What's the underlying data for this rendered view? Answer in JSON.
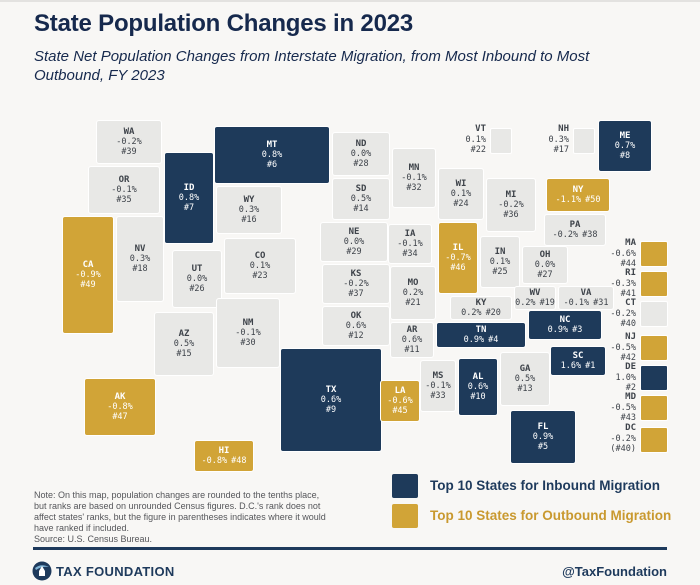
{
  "title": "State Population Changes in 2023",
  "subtitle": "State Net Population Changes from Interstate Migration, from Most Inbound to Most Outbound, FY 2023",
  "colors": {
    "inbound": "#1e3a5a",
    "outbound": "#d1a437",
    "neutral": "#e8e8e6",
    "navy": "#16294d",
    "footer_navy": "#1e3a5c",
    "outbound_text": "#c9992f",
    "background": "#f8f7f5",
    "note_gray": "#55565a",
    "label_dark": "#3e434a"
  },
  "legend": [
    {
      "label": "Top 10 States for Inbound Migration",
      "group": "inbound"
    },
    {
      "label": "Top 10 States for Outbound Migration",
      "group": "outbound"
    }
  ],
  "note": "Note: On this map, population changes are rounded to the tenths place,\nbut ranks are based on unrounded Census figures. D.C.'s rank does not\naffect states' ranks, but the figure in parentheses indicates where it would\nhave ranked if included.",
  "source": "Source: U.S. Census Bureau.",
  "footer": {
    "brand": "TAX FOUNDATION",
    "handle": "@TaxFoundation",
    "logo": "taxfoundation-logo"
  },
  "states": [
    {
      "abbr": "SC",
      "change": "1.6%",
      "rank": "#1",
      "group": "inbound"
    },
    {
      "abbr": "DE",
      "change": "1.0%",
      "rank": "#2",
      "group": "inbound"
    },
    {
      "abbr": "NC",
      "change": "0.9%",
      "rank": "#3",
      "group": "inbound"
    },
    {
      "abbr": "TN",
      "change": "0.9%",
      "rank": "#4",
      "group": "inbound"
    },
    {
      "abbr": "FL",
      "change": "0.9%",
      "rank": "#5",
      "group": "inbound"
    },
    {
      "abbr": "MT",
      "change": "0.8%",
      "rank": "#6",
      "group": "inbound"
    },
    {
      "abbr": "ID",
      "change": "0.8%",
      "rank": "#7",
      "group": "inbound"
    },
    {
      "abbr": "ME",
      "change": "0.7%",
      "rank": "#8",
      "group": "inbound"
    },
    {
      "abbr": "TX",
      "change": "0.6%",
      "rank": "#9",
      "group": "inbound"
    },
    {
      "abbr": "AL",
      "change": "0.6%",
      "rank": "#10",
      "group": "inbound"
    },
    {
      "abbr": "AR",
      "change": "0.6%",
      "rank": "#11",
      "group": "neutral"
    },
    {
      "abbr": "OK",
      "change": "0.6%",
      "rank": "#12",
      "group": "neutral"
    },
    {
      "abbr": "GA",
      "change": "0.5%",
      "rank": "#13",
      "group": "neutral"
    },
    {
      "abbr": "SD",
      "change": "0.5%",
      "rank": "#14",
      "group": "neutral"
    },
    {
      "abbr": "AZ",
      "change": "0.5%",
      "rank": "#15",
      "group": "neutral"
    },
    {
      "abbr": "WY",
      "change": "0.3%",
      "rank": "#16",
      "group": "neutral"
    },
    {
      "abbr": "NH",
      "change": "0.3%",
      "rank": "#17",
      "group": "neutral"
    },
    {
      "abbr": "NV",
      "change": "0.3%",
      "rank": "#18",
      "group": "neutral"
    },
    {
      "abbr": "WV",
      "change": "0.2%",
      "rank": "#19",
      "group": "neutral"
    },
    {
      "abbr": "KY",
      "change": "0.2%",
      "rank": "#20",
      "group": "neutral"
    },
    {
      "abbr": "MO",
      "change": "0.2%",
      "rank": "#21",
      "group": "neutral"
    },
    {
      "abbr": "VT",
      "change": "0.1%",
      "rank": "#22",
      "group": "neutral"
    },
    {
      "abbr": "CO",
      "change": "0.1%",
      "rank": "#23",
      "group": "neutral"
    },
    {
      "abbr": "WI",
      "change": "0.1%",
      "rank": "#24",
      "group": "neutral"
    },
    {
      "abbr": "IN",
      "change": "0.1%",
      "rank": "#25",
      "group": "neutral"
    },
    {
      "abbr": "UT",
      "change": "0.0%",
      "rank": "#26",
      "group": "neutral"
    },
    {
      "abbr": "OH",
      "change": "0.0%",
      "rank": "#27",
      "group": "neutral"
    },
    {
      "abbr": "ND",
      "change": "0.0%",
      "rank": "#28",
      "group": "neutral"
    },
    {
      "abbr": "NE",
      "change": "0.0%",
      "rank": "#29",
      "group": "neutral"
    },
    {
      "abbr": "NM",
      "change": "-0.1%",
      "rank": "#30",
      "group": "neutral"
    },
    {
      "abbr": "VA",
      "change": "-0.1%",
      "rank": "#31",
      "group": "neutral"
    },
    {
      "abbr": "MN",
      "change": "-0.1%",
      "rank": "#32",
      "group": "neutral"
    },
    {
      "abbr": "MS",
      "change": "-0.1%",
      "rank": "#33",
      "group": "neutral"
    },
    {
      "abbr": "IA",
      "change": "-0.1%",
      "rank": "#34",
      "group": "neutral"
    },
    {
      "abbr": "OR",
      "change": "-0.1%",
      "rank": "#35",
      "group": "neutral"
    },
    {
      "abbr": "MI",
      "change": "-0.2%",
      "rank": "#36",
      "group": "neutral"
    },
    {
      "abbr": "KS",
      "change": "-0.2%",
      "rank": "#37",
      "group": "neutral"
    },
    {
      "abbr": "PA",
      "change": "-0.2%",
      "rank": "#38",
      "group": "neutral"
    },
    {
      "abbr": "WA",
      "change": "-0.2%",
      "rank": "#39",
      "group": "neutral"
    },
    {
      "abbr": "CT",
      "change": "-0.2%",
      "rank": "#40",
      "group": "neutral"
    },
    {
      "abbr": "RI",
      "change": "-0.3%",
      "rank": "#41",
      "group": "outbound"
    },
    {
      "abbr": "NJ",
      "change": "-0.5%",
      "rank": "#42",
      "group": "outbound"
    },
    {
      "abbr": "MD",
      "change": "-0.5%",
      "rank": "#43",
      "group": "outbound"
    },
    {
      "abbr": "MA",
      "change": "-0.6%",
      "rank": "#44",
      "group": "outbound"
    },
    {
      "abbr": "LA",
      "change": "-0.6%",
      "rank": "#45",
      "group": "outbound"
    },
    {
      "abbr": "IL",
      "change": "-0.7%",
      "rank": "#46",
      "group": "outbound"
    },
    {
      "abbr": "AK",
      "change": "-0.8%",
      "rank": "#47",
      "group": "outbound"
    },
    {
      "abbr": "HI",
      "change": "-0.8%",
      "rank": "#48",
      "group": "outbound"
    },
    {
      "abbr": "CA",
      "change": "-0.9%",
      "rank": "#49",
      "group": "outbound"
    },
    {
      "abbr": "NY",
      "change": "-1.1%",
      "rank": "#50",
      "group": "outbound"
    },
    {
      "abbr": "DC",
      "change": "-0.2%",
      "rank": "(#40)",
      "group": "outbound"
    }
  ]
}
